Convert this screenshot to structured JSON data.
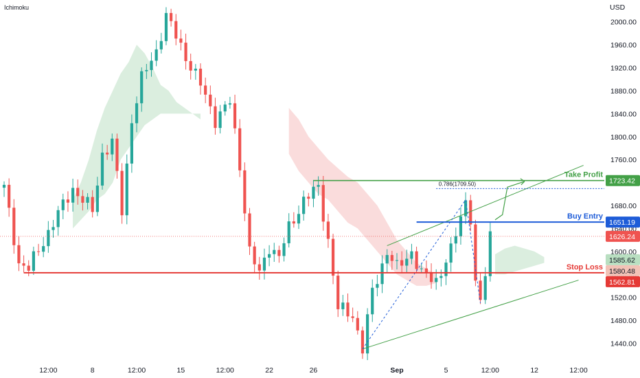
{
  "indicator": "Ichimoku",
  "currency": "USD",
  "colors": {
    "up": "#26a69a",
    "down": "#ef5350",
    "take_profit": "#43a047",
    "buy_entry": "#1e5cd8",
    "stop_loss": "#e53935",
    "current": "#ef5350",
    "cloud_green": "#cfe8d4",
    "cloud_red": "#f8d0d0",
    "tag_green": "#b9dfc1",
    "tag_red": "#f2c2b6"
  },
  "chart_data": {
    "type": "candlestick",
    "title": "",
    "y_ticks": [
      1440,
      1480,
      1520,
      1560,
      1600,
      1640,
      1680,
      1720,
      1760,
      1800,
      1840,
      1880,
      1920,
      1960,
      2000
    ],
    "ylim": [
      1413,
      2038
    ],
    "x_ticks": [
      {
        "label": "12:00",
        "bar": 9
      },
      {
        "label": "8",
        "bar": 18
      },
      {
        "label": "12:00",
        "bar": 27
      },
      {
        "label": "15",
        "bar": 36
      },
      {
        "label": "12:00",
        "bar": 45
      },
      {
        "label": "22",
        "bar": 54
      },
      {
        "label": "26",
        "bar": 63
      },
      {
        "label": "Sep",
        "bar": 80,
        "bold": true
      },
      {
        "label": "5",
        "bar": 90
      },
      {
        "label": "12:00",
        "bar": 99
      },
      {
        "label": "12",
        "bar": 108
      },
      {
        "label": "12:00",
        "bar": 117
      }
    ],
    "bar_count": 122,
    "anchors": [
      [
        0,
        1710
      ],
      [
        3,
        1580
      ],
      [
        5,
        1570
      ],
      [
        10,
        1650
      ],
      [
        14,
        1710
      ],
      [
        18,
        1670
      ],
      [
        20,
        1770
      ],
      [
        22,
        1790
      ],
      [
        24,
        1670
      ],
      [
        26,
        1830
      ],
      [
        28,
        1900
      ],
      [
        31,
        1950
      ],
      [
        33,
        2010
      ],
      [
        35,
        1975
      ],
      [
        37,
        1940
      ],
      [
        40,
        1890
      ],
      [
        43,
        1830
      ],
      [
        46,
        1860
      ],
      [
        48,
        1750
      ],
      [
        50,
        1600
      ],
      [
        52,
        1560
      ],
      [
        54,
        1610
      ],
      [
        56,
        1590
      ],
      [
        58,
        1640
      ],
      [
        61,
        1690
      ],
      [
        64,
        1710
      ],
      [
        66,
        1620
      ],
      [
        68,
        1500
      ],
      [
        71,
        1490
      ],
      [
        73,
        1430
      ],
      [
        75,
        1530
      ],
      [
        78,
        1600
      ],
      [
        80,
        1570
      ],
      [
        83,
        1600
      ],
      [
        85,
        1560
      ],
      [
        88,
        1550
      ],
      [
        91,
        1600
      ],
      [
        93,
        1660
      ],
      [
        94,
        1690
      ],
      [
        95,
        1660
      ],
      [
        96,
        1540
      ],
      [
        97,
        1510
      ],
      [
        98,
        1560
      ],
      [
        99,
        1629
      ]
    ],
    "cloud": [
      {
        "from": 14,
        "to": 40,
        "top": [
          1690,
          1720,
          1760,
          1810,
          1850,
          1880,
          1910,
          1930,
          1960,
          1945,
          1920,
          1890,
          1880,
          1860,
          1850,
          1840,
          1830
        ],
        "bottom": [
          1640,
          1655,
          1670,
          1690,
          1700,
          1720,
          1760,
          1780,
          1800,
          1820,
          1830,
          1840,
          1840,
          1840,
          1840,
          1840,
          1840
        ],
        "sentiment": "bullish"
      },
      {
        "from": 58,
        "to": 88,
        "top": [
          1850,
          1830,
          1800,
          1780,
          1760,
          1745,
          1730,
          1720,
          1700,
          1680,
          1650,
          1620,
          1600,
          1580,
          1570,
          1560
        ],
        "bottom": [
          1770,
          1740,
          1720,
          1700,
          1690,
          1670,
          1650,
          1640,
          1620,
          1600,
          1580,
          1560,
          1550,
          1540,
          1540,
          1545
        ],
        "sentiment": "bearish"
      },
      {
        "from": 100,
        "to": 110,
        "top": [
          1595,
          1605,
          1610,
          1605,
          1600,
          1590
        ],
        "bottom": [
          1560,
          1560,
          1565,
          1570,
          1575,
          1580
        ],
        "sentiment": "bullish"
      }
    ],
    "levels": {
      "take_profit": {
        "label": "Take Profit",
        "value": 1723.42,
        "price_tag": "1723.42"
      },
      "buy_entry": {
        "label": "Buy Entry",
        "value": 1651.19,
        "price_tag": "1651.19"
      },
      "stop_loss": {
        "label": "Stop Loss",
        "value": 1562.81,
        "price_tag": "1562.81"
      },
      "current": {
        "value": 1626.24,
        "price_tag": "1626.24"
      },
      "cloud_top": {
        "value": 1585.62,
        "price_tag": "1585.62"
      },
      "cloud_bottom": {
        "value": 1580.48,
        "price_tag": "1580.48"
      }
    },
    "fib": {
      "label": "0.786(1709.50)",
      "value": 1709.5
    },
    "channel": {
      "upper": [
        [
          78,
          1610
        ],
        [
          118,
          1750
        ]
      ],
      "lower": [
        [
          73,
          1430
        ],
        [
          117,
          1550
        ]
      ]
    }
  }
}
